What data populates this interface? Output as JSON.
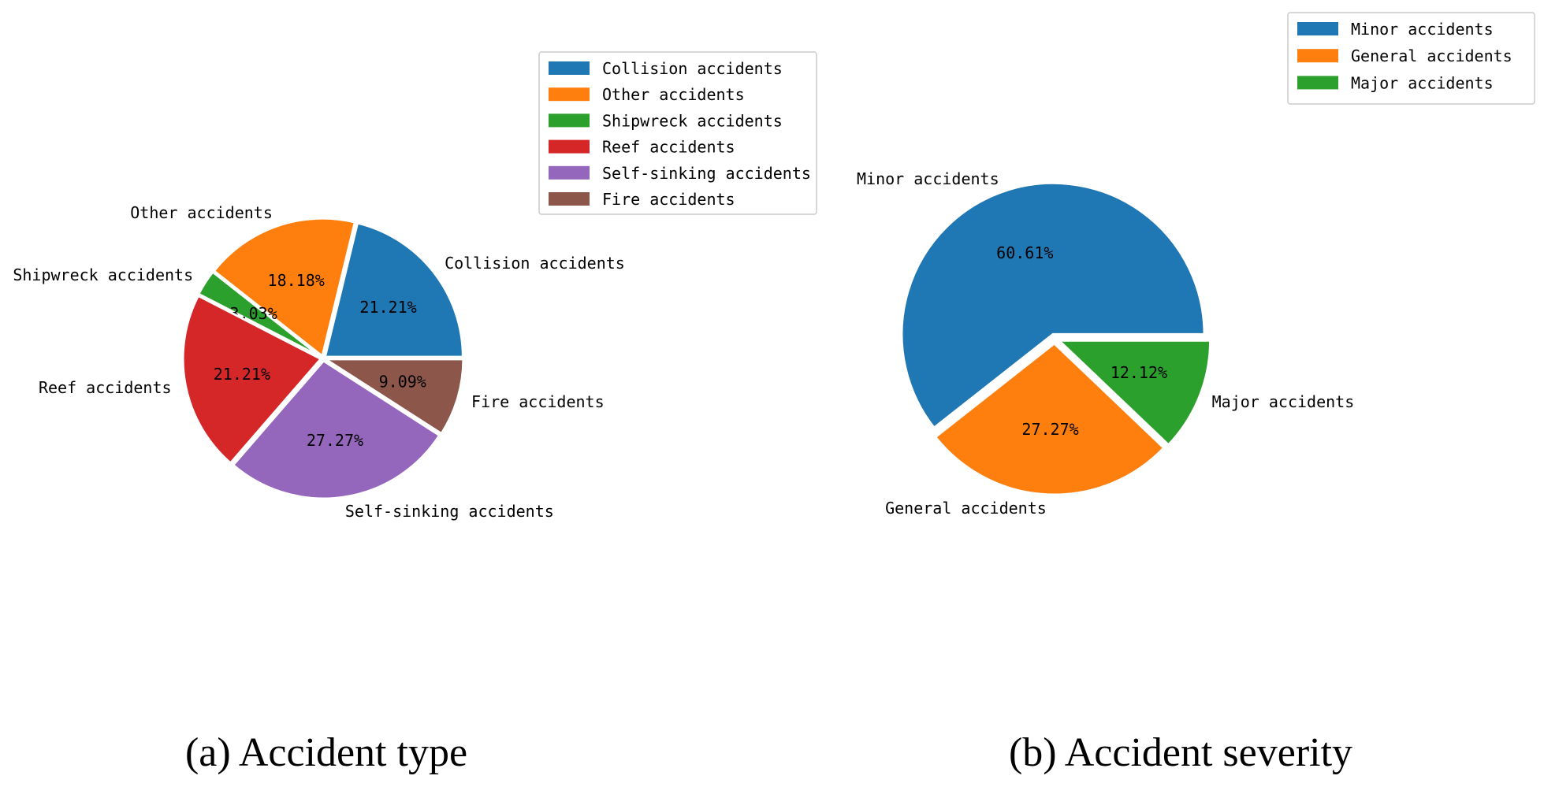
{
  "chart_data": [
    {
      "type": "pie",
      "caption": "(a) Accident type",
      "slices": [
        {
          "label": "Collision accidents",
          "value": 21.21,
          "pct_label": "21.21%",
          "color": "#1f77b4"
        },
        {
          "label": "Other accidents",
          "value": 18.18,
          "pct_label": "18.18%",
          "color": "#ff7f0e"
        },
        {
          "label": "Shipwreck accidents",
          "value": 3.03,
          "pct_label": "3.03%",
          "color": "#2ca02c"
        },
        {
          "label": "Reef accidents",
          "value": 21.21,
          "pct_label": "21.21%",
          "color": "#d62728"
        },
        {
          "label": "Self-sinking accidents",
          "value": 27.27,
          "pct_label": "27.27%",
          "color": "#9467bd"
        },
        {
          "label": "Fire accidents",
          "value": 9.09,
          "pct_label": "9.09%",
          "color": "#8c564b"
        }
      ],
      "legend_location": "upper-right"
    },
    {
      "type": "pie",
      "caption": "(b) Accident severity",
      "slices": [
        {
          "label": "Minor accidents",
          "value": 60.61,
          "pct_label": "60.61%",
          "color": "#1f77b4"
        },
        {
          "label": "General accidents",
          "value": 27.27,
          "pct_label": "27.27%",
          "color": "#ff7f0e"
        },
        {
          "label": "Major accidents",
          "value": 12.12,
          "pct_label": "12.12%",
          "color": "#2ca02c"
        }
      ],
      "legend_location": "upper-right"
    }
  ]
}
